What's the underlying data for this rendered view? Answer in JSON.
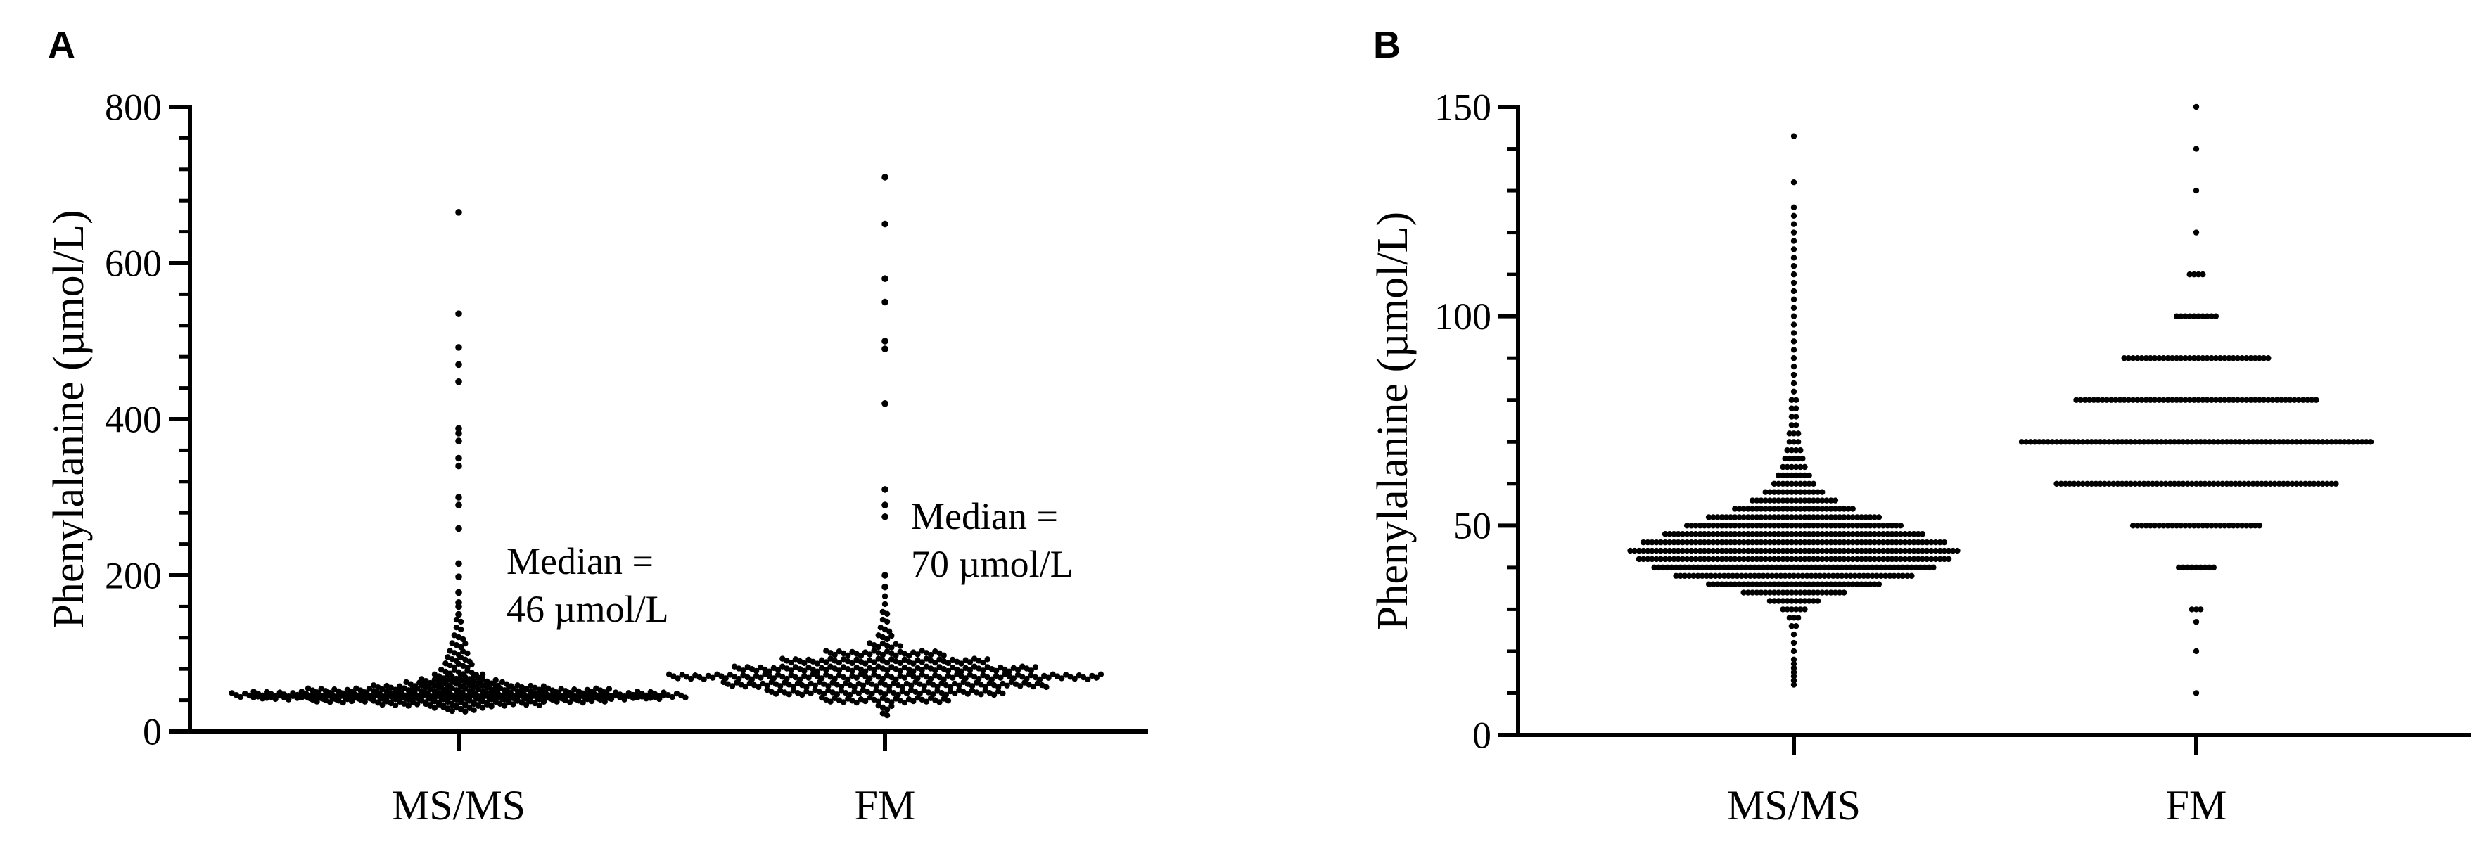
{
  "panels": [
    {
      "letter": "A"
    },
    {
      "letter": "B"
    }
  ],
  "chart_data": [
    {
      "type": "scatter",
      "panel": "A",
      "ylabel": "Phenylalanine (µmol/L)",
      "xlabel": "",
      "categories": [
        "MS/MS",
        "FM"
      ],
      "ylim": [
        0,
        800
      ],
      "yticks": [
        0,
        200,
        400,
        600,
        800
      ],
      "y_minor_step": 40,
      "point_color": "#000000",
      "annotations": [
        {
          "lines": [
            "Median =",
            "46 µmol/L"
          ],
          "category": "MS/MS"
        },
        {
          "lines": [
            "Median =",
            "70 µmol/L"
          ],
          "category": "FM"
        }
      ],
      "series": [
        {
          "category": "MS/MS",
          "median": 46,
          "bulk": [
            [
              28,
              8
            ],
            [
              32,
              16
            ],
            [
              36,
              40
            ],
            [
              40,
              70
            ],
            [
              44,
              95
            ],
            [
              46,
              105
            ],
            [
              48,
              95
            ],
            [
              52,
              70
            ],
            [
              56,
              40
            ],
            [
              60,
              25
            ],
            [
              64,
              18
            ],
            [
              70,
              12
            ],
            [
              76,
              9
            ],
            [
              84,
              7
            ],
            [
              92,
              6
            ],
            [
              100,
              5
            ],
            [
              110,
              4
            ],
            [
              120,
              3
            ],
            [
              130,
              2
            ],
            [
              140,
              2
            ]
          ],
          "outliers": [
            665,
            535,
            492,
            470,
            448,
            388,
            382,
            372,
            350,
            340,
            300,
            290,
            260,
            215,
            198,
            178,
            165,
            160,
            150
          ]
        },
        {
          "category": "FM",
          "median": 70,
          "bulk": [
            [
              20,
              2
            ],
            [
              30,
              4
            ],
            [
              40,
              30
            ],
            [
              50,
              55
            ],
            [
              60,
              75
            ],
            [
              70,
              100
            ],
            [
              80,
              70
            ],
            [
              90,
              48
            ],
            [
              100,
              28
            ],
            [
              110,
              8
            ],
            [
              120,
              4
            ],
            [
              130,
              3
            ],
            [
              140,
              2
            ],
            [
              150,
              2
            ],
            [
              160,
              1
            ],
            [
              170,
              1
            ]
          ],
          "outliers": [
            710,
            650,
            580,
            550,
            500,
            490,
            420,
            310,
            290,
            275,
            200,
            185
          ]
        }
      ]
    },
    {
      "type": "scatter",
      "panel": "B",
      "ylabel": "Phenylalanine (µmol/L)",
      "xlabel": "",
      "categories": [
        "MS/MS",
        "FM"
      ],
      "ylim": [
        0,
        150
      ],
      "yticks": [
        0,
        50,
        100,
        150
      ],
      "y_minor_step": 10,
      "point_color": "#000000",
      "series": [
        {
          "category": "MS/MS",
          "median": 46,
          "bulk": [
            [
              12,
              1
            ],
            [
              13,
              1
            ],
            [
              14,
              1
            ],
            [
              15,
              1
            ],
            [
              16,
              1
            ],
            [
              17,
              1
            ],
            [
              18,
              1
            ],
            [
              20,
              1
            ],
            [
              22,
              1
            ],
            [
              24,
              1
            ],
            [
              26,
              2
            ],
            [
              28,
              3
            ],
            [
              30,
              6
            ],
            [
              32,
              12
            ],
            [
              34,
              24
            ],
            [
              36,
              40
            ],
            [
              38,
              55
            ],
            [
              40,
              65
            ],
            [
              42,
              72
            ],
            [
              44,
              76
            ],
            [
              46,
              70
            ],
            [
              48,
              60
            ],
            [
              50,
              50
            ],
            [
              52,
              40
            ],
            [
              54,
              28
            ],
            [
              56,
              20
            ],
            [
              58,
              14
            ],
            [
              60,
              10
            ],
            [
              62,
              8
            ],
            [
              64,
              6
            ],
            [
              66,
              5
            ],
            [
              68,
              4
            ],
            [
              70,
              3
            ],
            [
              72,
              3
            ],
            [
              74,
              2
            ],
            [
              76,
              2
            ],
            [
              78,
              2
            ],
            [
              80,
              2
            ],
            [
              82,
              1
            ],
            [
              84,
              1
            ],
            [
              86,
              1
            ],
            [
              88,
              1
            ],
            [
              90,
              1
            ],
            [
              92,
              1
            ],
            [
              94,
              1
            ],
            [
              96,
              1
            ],
            [
              98,
              1
            ],
            [
              100,
              1
            ],
            [
              102,
              1
            ],
            [
              104,
              1
            ],
            [
              106,
              1
            ],
            [
              108,
              1
            ],
            [
              110,
              1
            ],
            [
              112,
              1
            ],
            [
              114,
              1
            ],
            [
              116,
              1
            ],
            [
              118,
              1
            ],
            [
              120,
              1
            ],
            [
              122,
              1
            ],
            [
              124,
              1
            ],
            [
              126,
              1
            ],
            [
              132,
              1
            ],
            [
              143,
              1
            ]
          ]
        },
        {
          "category": "FM",
          "median": 70,
          "bulk": [
            [
              10,
              1
            ],
            [
              20,
              1
            ],
            [
              27,
              1
            ],
            [
              30,
              3
            ],
            [
              40,
              9
            ],
            [
              50,
              30
            ],
            [
              60,
              65
            ],
            [
              70,
              81
            ],
            [
              80,
              56
            ],
            [
              90,
              34
            ],
            [
              100,
              10
            ],
            [
              110,
              4
            ],
            [
              120,
              1
            ],
            [
              130,
              1
            ],
            [
              140,
              1
            ],
            [
              150,
              1
            ]
          ]
        }
      ]
    }
  ]
}
